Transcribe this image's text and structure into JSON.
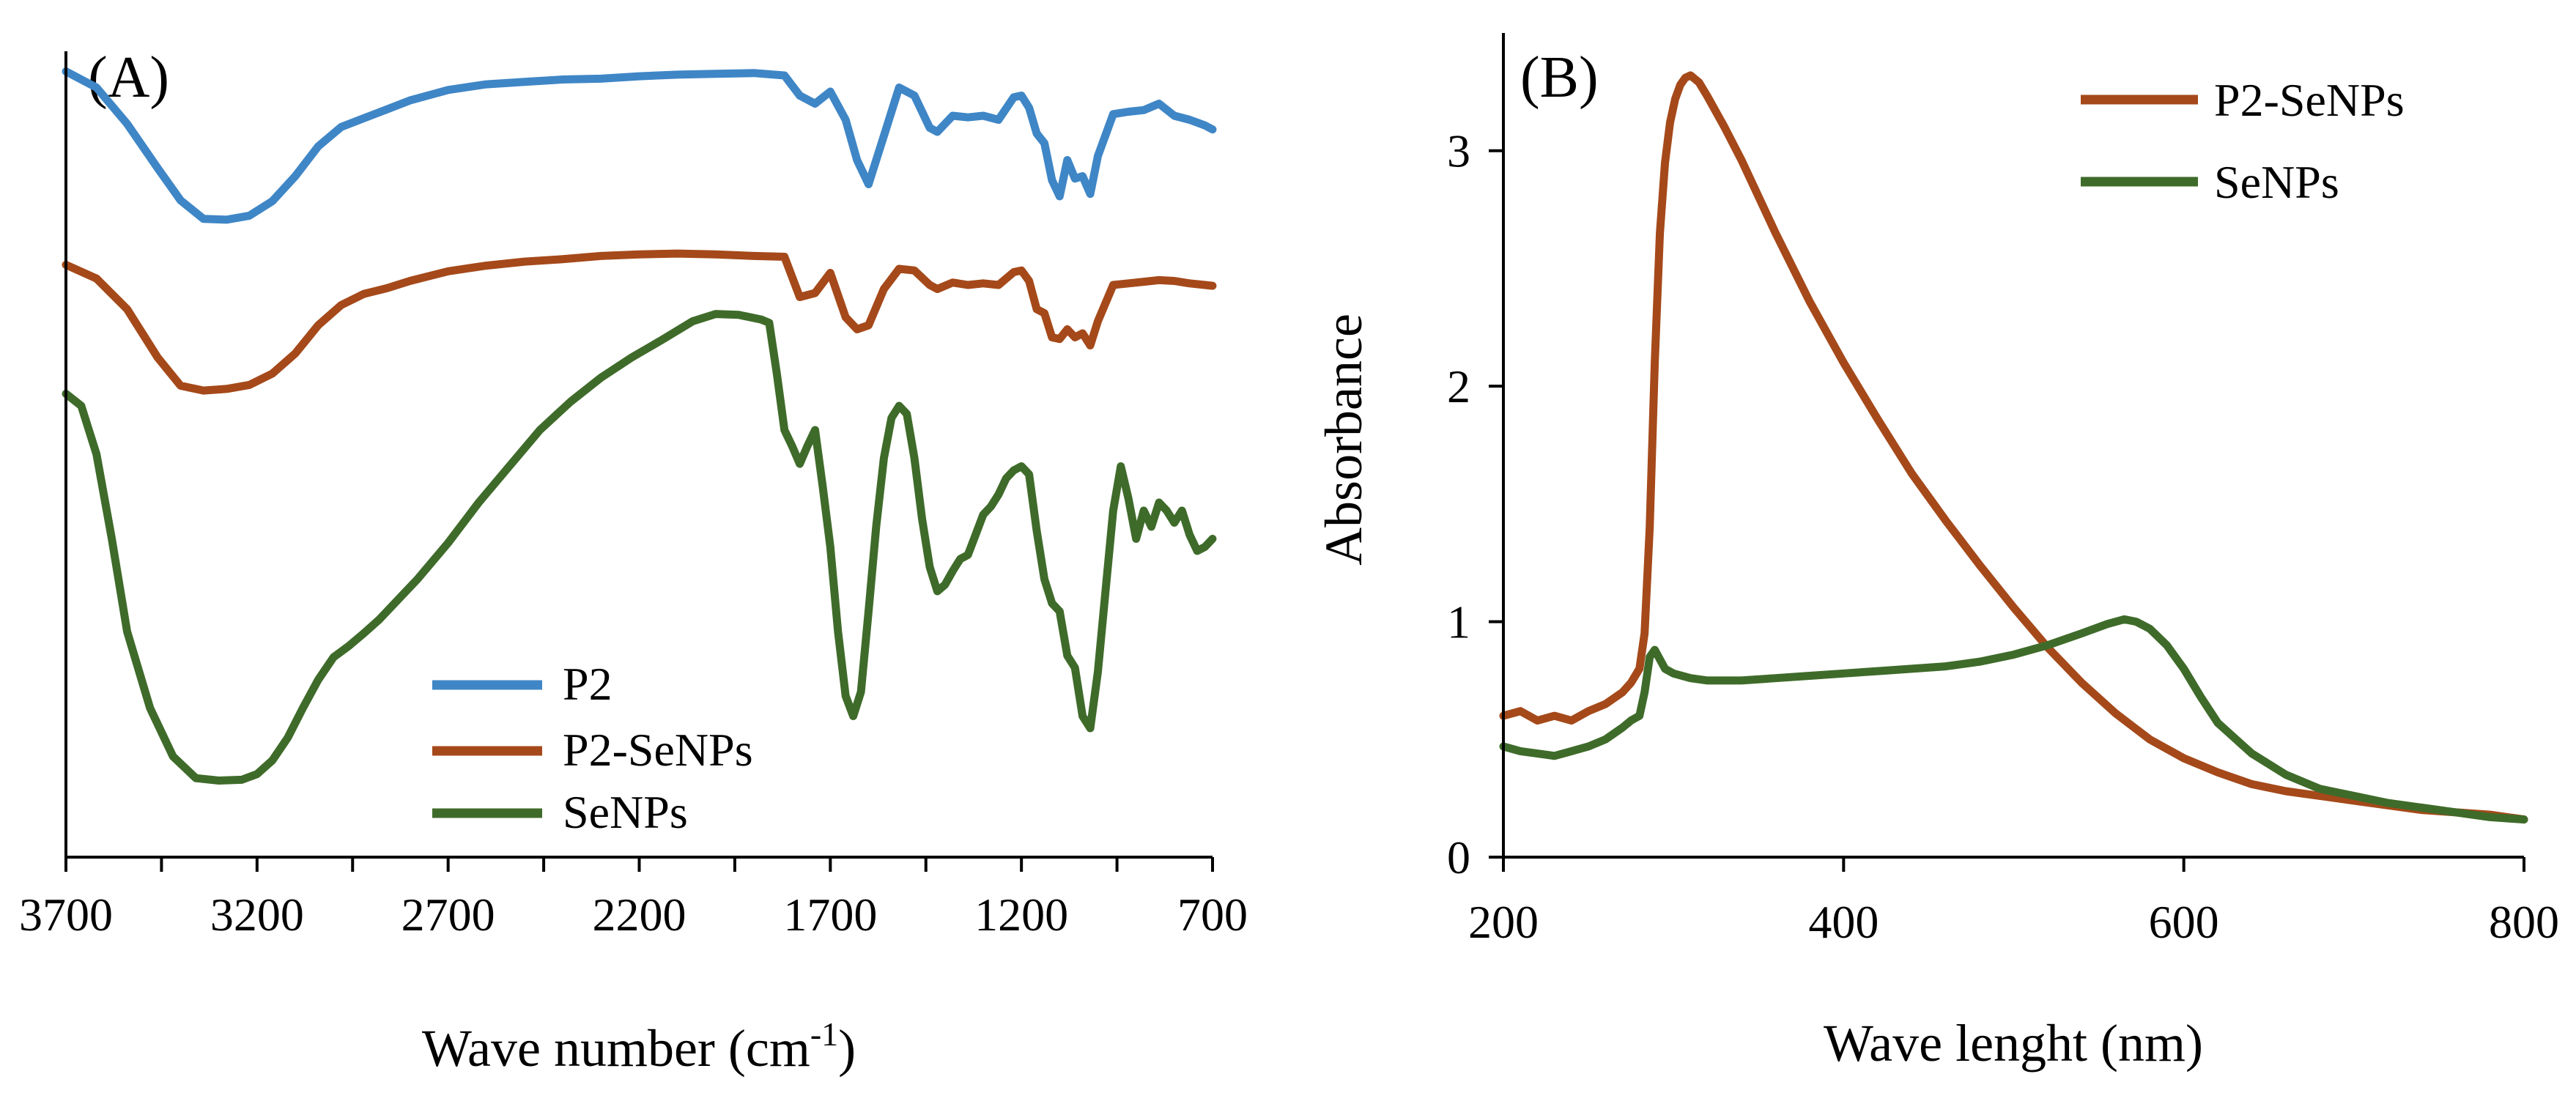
{
  "chart_data": [
    {
      "type": "line",
      "panel_label": "(A)",
      "xlabel_main": "Wave number (cm",
      "xlabel_sup": "-1",
      "xlabel_tail": ")",
      "ylabel": "",
      "xlim": [
        3700,
        700
      ],
      "x_reversed": true,
      "ylim": [
        0,
        100
      ],
      "y_axis_ticks": false,
      "x_ticks": [
        3700,
        3200,
        2700,
        2200,
        1700,
        1200,
        700
      ],
      "x_tick_labels": [
        "3700",
        "3200",
        "2700",
        "2200",
        "1700",
        "1200",
        "700"
      ],
      "legend_position": "bottom-center",
      "series": [
        {
          "name": "P2",
          "color": "#3f86c6",
          "x": [
            3700,
            3620,
            3540,
            3460,
            3400,
            3340,
            3280,
            3220,
            3160,
            3100,
            3040,
            2980,
            2920,
            2860,
            2800,
            2700,
            2600,
            2500,
            2400,
            2300,
            2200,
            2100,
            2000,
            1900,
            1820,
            1780,
            1740,
            1700,
            1660,
            1630,
            1600,
            1560,
            1520,
            1480,
            1440,
            1420,
            1380,
            1340,
            1300,
            1260,
            1220,
            1200,
            1180,
            1160,
            1140,
            1120,
            1100,
            1080,
            1060,
            1040,
            1020,
            1000,
            960,
            920,
            880,
            840,
            800,
            760,
            720,
            700
          ],
          "y": [
            97.5,
            95.5,
            91.0,
            85.5,
            81.5,
            79.2,
            79.1,
            79.6,
            81.4,
            84.5,
            88.2,
            90.6,
            91.7,
            92.8,
            93.9,
            95.2,
            95.9,
            96.2,
            96.5,
            96.6,
            96.9,
            97.1,
            97.2,
            97.3,
            97.0,
            94.5,
            93.5,
            95.0,
            91.5,
            86.5,
            83.5,
            89.5,
            95.5,
            94.5,
            90.5,
            90.0,
            92.0,
            91.8,
            92.0,
            91.5,
            94.3,
            94.5,
            93.0,
            89.8,
            88.6,
            84.0,
            82.0,
            86.5,
            84.2,
            84.5,
            82.3,
            87.0,
            92.2,
            92.5,
            92.7,
            93.5,
            92.0,
            91.5,
            90.8,
            90.3
          ]
        },
        {
          "name": "P2-SeNPs",
          "color": "#a5491a",
          "x": [
            3700,
            3620,
            3540,
            3460,
            3400,
            3340,
            3280,
            3220,
            3160,
            3100,
            3040,
            2980,
            2920,
            2860,
            2800,
            2700,
            2600,
            2500,
            2400,
            2300,
            2200,
            2100,
            2000,
            1900,
            1820,
            1780,
            1740,
            1700,
            1660,
            1630,
            1600,
            1560,
            1520,
            1480,
            1440,
            1420,
            1380,
            1340,
            1300,
            1260,
            1220,
            1200,
            1180,
            1160,
            1140,
            1120,
            1100,
            1080,
            1060,
            1040,
            1020,
            1000,
            960,
            920,
            880,
            840,
            800,
            760,
            720,
            700
          ],
          "y": [
            73.5,
            71.8,
            68.0,
            62.0,
            58.5,
            57.9,
            58.1,
            58.6,
            60.0,
            62.5,
            66.0,
            68.5,
            69.9,
            70.6,
            71.5,
            72.7,
            73.4,
            73.9,
            74.2,
            74.6,
            74.8,
            74.9,
            74.8,
            74.6,
            74.5,
            69.5,
            70.0,
            72.5,
            67.0,
            65.5,
            66.0,
            70.5,
            73.0,
            72.8,
            71.0,
            70.5,
            71.3,
            71.0,
            71.2,
            71.0,
            72.6,
            72.8,
            71.5,
            68.0,
            67.5,
            64.5,
            64.3,
            65.5,
            64.5,
            65.0,
            63.5,
            66.5,
            71.0,
            71.2,
            71.4,
            71.6,
            71.5,
            71.2,
            71.0,
            70.9
          ]
        },
        {
          "name": "SeNPs",
          "color": "#3f6b2a",
          "x": [
            3700,
            3660,
            3620,
            3580,
            3540,
            3480,
            3420,
            3360,
            3300,
            3240,
            3200,
            3160,
            3120,
            3080,
            3040,
            3000,
            2960,
            2920,
            2880,
            2840,
            2780,
            2700,
            2620,
            2540,
            2460,
            2380,
            2300,
            2220,
            2140,
            2060,
            2000,
            1940,
            1880,
            1860,
            1840,
            1820,
            1800,
            1780,
            1760,
            1740,
            1720,
            1700,
            1680,
            1660,
            1640,
            1620,
            1600,
            1580,
            1560,
            1540,
            1520,
            1500,
            1480,
            1460,
            1440,
            1420,
            1400,
            1380,
            1360,
            1340,
            1320,
            1300,
            1280,
            1260,
            1240,
            1220,
            1200,
            1180,
            1160,
            1140,
            1120,
            1100,
            1080,
            1060,
            1040,
            1020,
            1000,
            980,
            960,
            940,
            920,
            900,
            880,
            860,
            840,
            820,
            800,
            780,
            760,
            740,
            720,
            700
          ],
          "y": [
            57.5,
            56.0,
            50.0,
            39.5,
            28.0,
            18.5,
            12.5,
            9.8,
            9.5,
            9.6,
            10.3,
            12.0,
            14.8,
            18.5,
            22.0,
            24.8,
            26.2,
            27.8,
            29.5,
            31.5,
            34.5,
            39.0,
            44.0,
            48.5,
            53.0,
            56.5,
            59.5,
            62.0,
            64.2,
            66.5,
            67.4,
            67.3,
            66.7,
            66.3,
            60.0,
            53.0,
            51.0,
            48.8,
            51.0,
            53.0,
            46.0,
            38.5,
            28.0,
            20.0,
            17.5,
            20.5,
            30.5,
            41.0,
            49.5,
            54.5,
            56.0,
            55.0,
            49.5,
            42.0,
            36.0,
            33.0,
            33.8,
            35.5,
            37.0,
            37.5,
            40.0,
            42.5,
            43.5,
            45.0,
            47.0,
            48.0,
            48.5,
            47.5,
            40.5,
            34.5,
            31.5,
            30.5,
            25.0,
            23.5,
            17.5,
            16.0,
            23.0,
            33.0,
            43.0,
            48.5,
            44.5,
            39.5,
            43.0,
            41.0,
            44.0,
            43.0,
            41.5,
            43.0,
            40.0,
            38.0,
            38.5,
            39.5
          ]
        }
      ]
    },
    {
      "type": "line",
      "panel_label": "(B)",
      "xlabel": "Wave lenght (nm)",
      "ylabel": "Absorbance",
      "xlim": [
        200,
        800
      ],
      "ylim": [
        0,
        3.5
      ],
      "x_ticks": [
        200,
        400,
        600,
        800
      ],
      "x_tick_labels": [
        "200",
        "400",
        "600",
        "800"
      ],
      "y_ticks": [
        0,
        1,
        2,
        3
      ],
      "y_tick_labels": [
        "0",
        "1",
        "2",
        "3"
      ],
      "legend_position": "top-right",
      "series": [
        {
          "name": "P2-SeNPs",
          "color": "#a5491a",
          "x": [
            200,
            210,
            220,
            230,
            240,
            250,
            260,
            270,
            275,
            280,
            283,
            286,
            289,
            292,
            295,
            298,
            301,
            304,
            307,
            310,
            315,
            320,
            330,
            340,
            360,
            380,
            400,
            420,
            440,
            460,
            480,
            500,
            520,
            540,
            560,
            580,
            600,
            620,
            640,
            660,
            680,
            700,
            720,
            740,
            760,
            780,
            800
          ],
          "y": [
            0.6,
            0.62,
            0.58,
            0.6,
            0.58,
            0.62,
            0.65,
            0.7,
            0.74,
            0.8,
            0.95,
            1.4,
            2.1,
            2.65,
            2.95,
            3.12,
            3.22,
            3.28,
            3.31,
            3.32,
            3.29,
            3.23,
            3.1,
            2.96,
            2.65,
            2.36,
            2.1,
            1.86,
            1.63,
            1.43,
            1.24,
            1.06,
            0.89,
            0.74,
            0.61,
            0.5,
            0.42,
            0.36,
            0.31,
            0.28,
            0.26,
            0.24,
            0.22,
            0.2,
            0.19,
            0.18,
            0.16
          ]
        },
        {
          "name": "SeNPs",
          "color": "#3f6b2a",
          "x": [
            200,
            210,
            220,
            230,
            240,
            250,
            260,
            270,
            275,
            280,
            283,
            286,
            289,
            292,
            295,
            300,
            310,
            320,
            340,
            360,
            380,
            400,
            420,
            440,
            460,
            480,
            500,
            520,
            540,
            555,
            565,
            572,
            580,
            590,
            600,
            610,
            620,
            640,
            660,
            680,
            700,
            720,
            740,
            760,
            780,
            800
          ],
          "y": [
            0.47,
            0.45,
            0.44,
            0.43,
            0.45,
            0.47,
            0.5,
            0.55,
            0.58,
            0.6,
            0.7,
            0.85,
            0.88,
            0.84,
            0.8,
            0.78,
            0.76,
            0.75,
            0.75,
            0.76,
            0.77,
            0.78,
            0.79,
            0.8,
            0.81,
            0.83,
            0.86,
            0.9,
            0.95,
            0.99,
            1.01,
            1.0,
            0.97,
            0.9,
            0.8,
            0.68,
            0.57,
            0.44,
            0.35,
            0.29,
            0.26,
            0.23,
            0.21,
            0.19,
            0.17,
            0.16
          ]
        }
      ]
    }
  ]
}
